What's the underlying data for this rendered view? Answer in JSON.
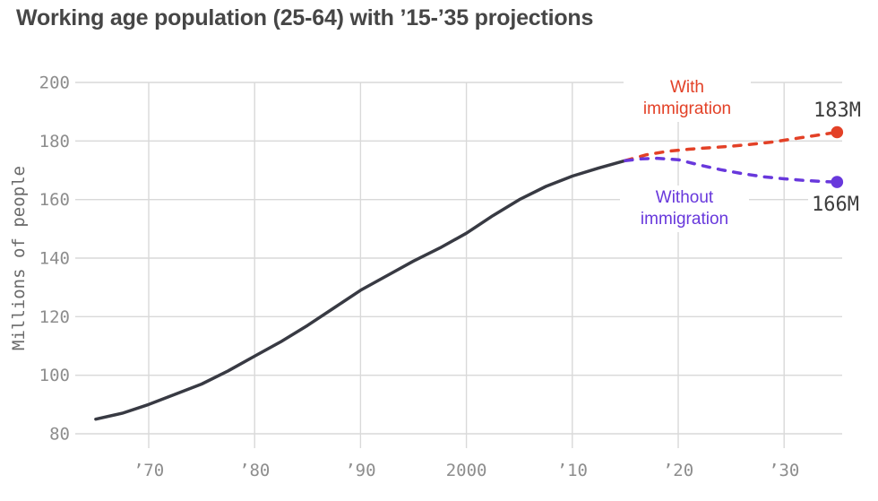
{
  "title": "Working age population (25-64) with ’15-’35 projections",
  "annotations": {
    "with": {
      "line1": "With",
      "line2": "immigration",
      "value": "183M"
    },
    "without": {
      "line1": "Without",
      "line2": "immigration",
      "value": "166M"
    }
  },
  "colors": {
    "historical_line": "#383a43",
    "with_immigration": "#e34127",
    "without_immigration": "#6838dc",
    "grid": "#d9d9d9",
    "tick_label": "#8d8d8d",
    "axis_title": "#6a6a6a",
    "value_label": "#3d3d3d",
    "title": "#464646"
  },
  "chart_data": {
    "type": "line",
    "title": "Working age population (25-64) with ’15-’35 projections",
    "xlabel": "",
    "ylabel": "Millions of people",
    "ylim": [
      80,
      200
    ],
    "y_ticks": [
      80,
      100,
      120,
      140,
      160,
      180,
      200
    ],
    "x_ticks": [
      {
        "year": 1970,
        "label": "’70"
      },
      {
        "year": 1980,
        "label": "’80"
      },
      {
        "year": 1990,
        "label": "’90"
      },
      {
        "year": 2000,
        "label": "2000"
      },
      {
        "year": 2010,
        "label": "’10"
      },
      {
        "year": 2020,
        "label": "’20"
      },
      {
        "year": 2030,
        "label": "’30"
      }
    ],
    "grid": true,
    "legend_position": "inline-annotations",
    "series": [
      {
        "name": "Historical",
        "style": "solid",
        "color": "#383a43",
        "end_dot": false,
        "x": [
          1965,
          1967.5,
          1970,
          1972.5,
          1975,
          1977.5,
          1980,
          1982.5,
          1985,
          1987.5,
          1990,
          1992.5,
          1995,
          1997.5,
          2000,
          2002.5,
          2005,
          2007.5,
          2010,
          2012.5,
          2015
        ],
        "y": [
          85,
          87,
          90,
          93.5,
          97,
          101.5,
          106.5,
          111.5,
          117,
          123,
          129,
          134,
          139,
          143.5,
          148.5,
          154.5,
          160,
          164.5,
          168,
          170.8,
          173.3
        ]
      },
      {
        "name": "With immigration",
        "style": "dashed",
        "color": "#e34127",
        "end_dot": true,
        "end_value": 183,
        "end_value_label": "183M",
        "x": [
          2015,
          2017,
          2019,
          2021,
          2023,
          2025,
          2027,
          2029,
          2031,
          2033,
          2035
        ],
        "y": [
          173.3,
          175.3,
          176.5,
          177.2,
          177.7,
          178.2,
          178.9,
          179.7,
          180.8,
          181.9,
          183
        ]
      },
      {
        "name": "Without immigration",
        "style": "dashed",
        "color": "#6838dc",
        "end_dot": true,
        "end_value": 166,
        "end_value_label": "166M",
        "x": [
          2015,
          2016.5,
          2018,
          2020,
          2022,
          2024,
          2026,
          2028,
          2030,
          2032,
          2034,
          2035
        ],
        "y": [
          173.3,
          173.9,
          174.1,
          173.6,
          171.8,
          170.2,
          168.9,
          167.8,
          167.1,
          166.5,
          166.1,
          166
        ]
      }
    ]
  }
}
